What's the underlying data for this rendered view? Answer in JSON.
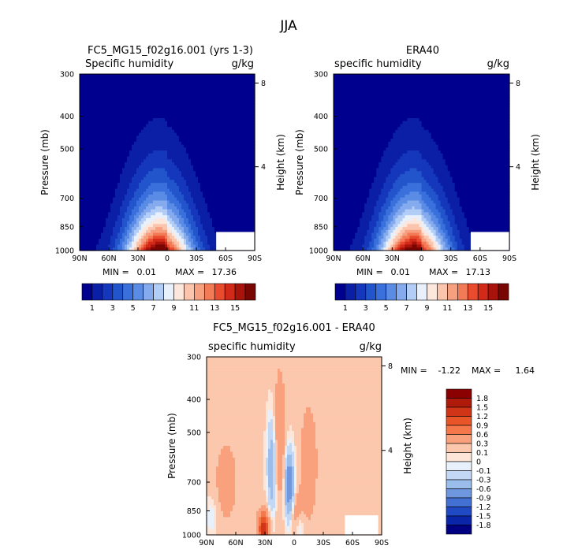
{
  "main_title": "JJA",
  "chart_data": [
    {
      "type": "heatmap",
      "title": "FC5_MG15_f02g16.001 (yrs 1-3)",
      "subtitle_left": "Specific humidity",
      "units": "g/kg",
      "ylabel": "Pressure (mb)",
      "ylabel_right": "Height (km)",
      "x_ticks": [
        "90N",
        "60N",
        "30N",
        "0",
        "30S",
        "60S",
        "90S"
      ],
      "y_ticks": [
        "300",
        "400",
        "500",
        "700",
        "850",
        "1000"
      ],
      "height_ticks": [
        "8",
        "4"
      ],
      "stats": {
        "min_label": "MIN =",
        "min": "0.01",
        "max_label": "MAX =",
        "max": "17.36"
      },
      "peak": {
        "lat": 8,
        "value": 17.36
      },
      "colorbar": {
        "labels": [
          "1",
          "3",
          "5",
          "7",
          "9",
          "11",
          "13",
          "15"
        ],
        "colors": [
          "#00008f",
          "#0a1fa6",
          "#1537bb",
          "#2255cc",
          "#3a70dc",
          "#5a8ce6",
          "#85aaee",
          "#b2cdf6",
          "#e8f0fb",
          "#fde7dc",
          "#fbc4ac",
          "#f7a080",
          "#f27a56",
          "#e94b2e",
          "#d22a19",
          "#a8140c",
          "#7a0604"
        ]
      }
    },
    {
      "type": "heatmap",
      "title": "ERA40",
      "subtitle_left": "specific humidity",
      "units": "g/kg",
      "ylabel": "Pressure (mb)",
      "ylabel_right": "Height (km)",
      "x_ticks": [
        "90N",
        "60N",
        "30N",
        "0",
        "30S",
        "60S",
        "90S"
      ],
      "y_ticks": [
        "300",
        "400",
        "500",
        "700",
        "850",
        "1000"
      ],
      "height_ticks": [
        "8",
        "4"
      ],
      "stats": {
        "min_label": "MIN =",
        "min": "0.01",
        "max_label": "MAX =",
        "max": "17.13"
      },
      "peak": {
        "lat": 8,
        "value": 17.13
      },
      "colorbar": {
        "labels": [
          "1",
          "3",
          "5",
          "7",
          "9",
          "11",
          "13",
          "15"
        ],
        "colors": [
          "#00008f",
          "#0a1fa6",
          "#1537bb",
          "#2255cc",
          "#3a70dc",
          "#5a8ce6",
          "#85aaee",
          "#b2cdf6",
          "#e8f0fb",
          "#fde7dc",
          "#fbc4ac",
          "#f7a080",
          "#f27a56",
          "#e94b2e",
          "#d22a19",
          "#a8140c",
          "#7a0604"
        ]
      }
    },
    {
      "type": "heatmap",
      "title": "FC5_MG15_f02g16.001 - ERA40",
      "subtitle_left": "specific humidity",
      "units": "g/kg",
      "ylabel": "Pressure (mb)",
      "ylabel_right": "Height (km)",
      "x_ticks": [
        "90N",
        "60N",
        "30N",
        "0",
        "30S",
        "60S",
        "90S"
      ],
      "y_ticks": [
        "300",
        "400",
        "500",
        "700",
        "850",
        "1000"
      ],
      "height_ticks": [
        "8",
        "4"
      ],
      "stats": {
        "min_label": "MIN =",
        "min": "-1.22",
        "max_label": "MAX =",
        "max": "1.64"
      },
      "colorbar": {
        "labels": [
          "1.8",
          "1.5",
          "1.2",
          "0.9",
          "0.6",
          "0.3",
          "0.1",
          "0",
          "-0.1",
          "-0.3",
          "-0.6",
          "-0.9",
          "-1.2",
          "-1.5",
          "-1.8"
        ],
        "colors": [
          "#8b0000",
          "#b01a0a",
          "#d03517",
          "#e85528",
          "#f4784a",
          "#f8a17c",
          "#fbc7ad",
          "#fde6d8",
          "#e8f0fb",
          "#c2d8f4",
          "#9bbdeb",
          "#6e97e0",
          "#4370d3",
          "#1f4ac4",
          "#0a25a8",
          "#000083"
        ]
      }
    }
  ]
}
